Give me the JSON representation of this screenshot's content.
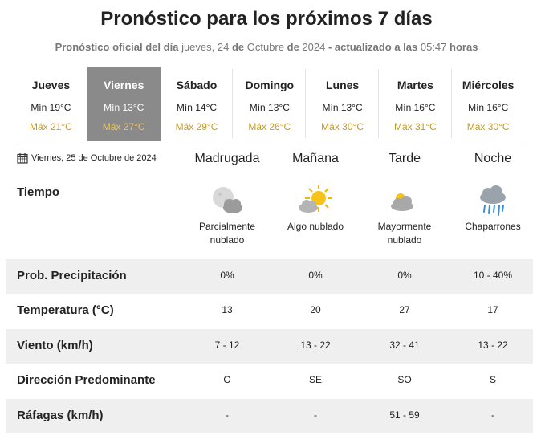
{
  "header": {
    "title": "Pronóstico para los próximos 7 días",
    "subtitle_prefix": "Pronóstico oficial del día",
    "subtitle_day": "jueves, 24",
    "subtitle_de1": "de",
    "subtitle_month": "Octubre",
    "subtitle_de2": "de",
    "subtitle_year": "2024",
    "subtitle_updated": "- actualizado a las",
    "subtitle_time": "05:47",
    "subtitle_hours": "horas"
  },
  "days": [
    {
      "name": "Jueves",
      "min": "Mín 19°C",
      "max": "Máx 21°C",
      "active": false
    },
    {
      "name": "Viernes",
      "min": "Mín 13°C",
      "max": "Máx 27°C",
      "active": true
    },
    {
      "name": "Sábado",
      "min": "Mín 14°C",
      "max": "Máx 29°C",
      "active": false
    },
    {
      "name": "Domingo",
      "min": "Mín 13°C",
      "max": "Máx 26°C",
      "active": false
    },
    {
      "name": "Lunes",
      "min": "Mín 13°C",
      "max": "Máx 30°C",
      "active": false
    },
    {
      "name": "Martes",
      "min": "Mín 16°C",
      "max": "Máx 31°C",
      "active": false
    },
    {
      "name": "Miércoles",
      "min": "Mín 16°C",
      "max": "Máx 30°C",
      "active": false
    }
  ],
  "detail": {
    "date": "Viernes, 25 de Octubre de 2024",
    "periods": [
      "Madrugada",
      "Mañana",
      "Tarde",
      "Noche"
    ],
    "tiempo_label": "Tiempo",
    "weather": [
      {
        "icon": "partly-cloudy-night-icon",
        "desc1": "Parcialmente",
        "desc2": "nublado"
      },
      {
        "icon": "sun-cloud-icon",
        "desc1": "Algo nublado",
        "desc2": ""
      },
      {
        "icon": "mostly-cloudy-icon",
        "desc1": "Mayormente",
        "desc2": "nublado"
      },
      {
        "icon": "showers-icon",
        "desc1": "Chaparrones",
        "desc2": ""
      }
    ],
    "rows": [
      {
        "label": "Prob. Precipitación",
        "values": [
          "0%",
          "0%",
          "0%",
          "10 - 40%"
        ]
      },
      {
        "label": "Temperatura (°C)",
        "values": [
          "13",
          "20",
          "27",
          "17"
        ]
      },
      {
        "label": "Viento (km/h)",
        "values": [
          "7 - 12",
          "13 - 22",
          "32 - 41",
          "13 - 22"
        ]
      },
      {
        "label": "Dirección Predominante",
        "values": [
          "O",
          "SE",
          "SO",
          "S"
        ]
      },
      {
        "label": "Ráfagas (km/h)",
        "values": [
          "-",
          "-",
          "51 - 59",
          "-"
        ]
      }
    ]
  },
  "colors": {
    "active_day_bg": "#8a8a8a",
    "max_temp": "#c39a2a",
    "shaded_row": "#efefef"
  }
}
